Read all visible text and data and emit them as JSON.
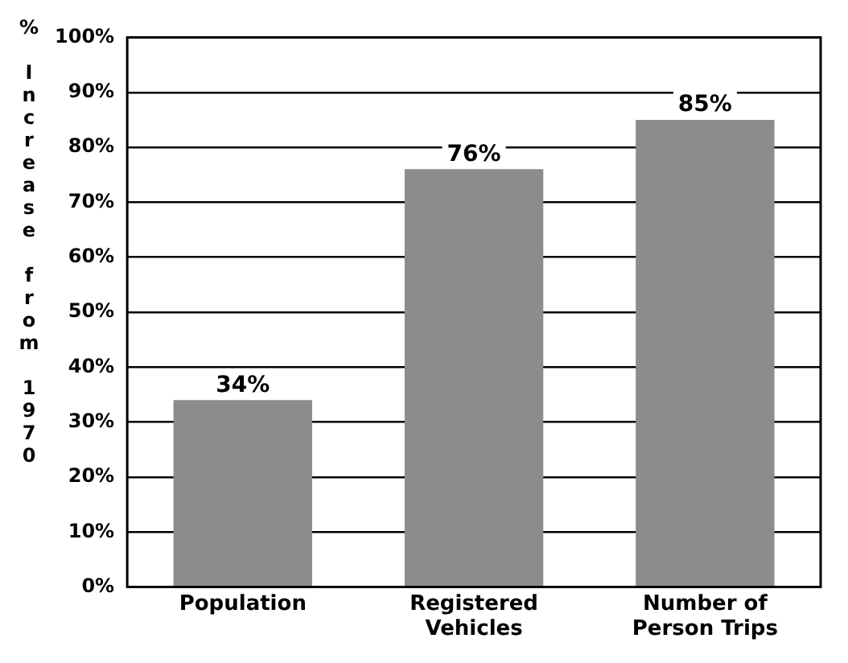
{
  "chart_data": {
    "type": "bar",
    "ylabel": "% Increase from 1970",
    "categories": [
      "Population",
      "Registered Vehicles",
      "Number of Person Trips"
    ],
    "values": [
      34,
      76,
      85
    ],
    "color": "#8c8c8c",
    "value_labels": [
      "34%",
      "76%",
      "85%"
    ],
    "ylim": [
      0,
      100
    ],
    "yticks": [
      {
        "value": 0,
        "label": "0%"
      },
      {
        "value": 10,
        "label": "10%"
      },
      {
        "value": 20,
        "label": "20%"
      },
      {
        "value": 30,
        "label": "30%"
      },
      {
        "value": 40,
        "label": "40%"
      },
      {
        "value": 50,
        "label": "50%"
      },
      {
        "value": 60,
        "label": "60%"
      },
      {
        "value": 70,
        "label": "70%"
      },
      {
        "value": 80,
        "label": "80%"
      },
      {
        "value": 90,
        "label": "90%"
      },
      {
        "value": 100,
        "label": "100%"
      }
    ],
    "grid": "y",
    "legend": false
  }
}
